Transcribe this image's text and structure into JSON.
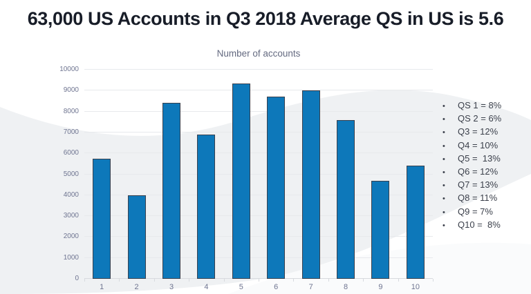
{
  "slide": {
    "title": "63,000 US Accounts in Q3 2018 Average QS in US is 5.6"
  },
  "chart_data": {
    "type": "bar",
    "title": "Number of accounts",
    "categories": [
      "1",
      "2",
      "3",
      "4",
      "5",
      "6",
      "7",
      "8",
      "9",
      "10"
    ],
    "values": [
      5750,
      4000,
      8400,
      6900,
      9350,
      8700,
      9000,
      7600,
      4700,
      5400
    ],
    "xlabel": "",
    "ylabel": "",
    "ylim": [
      0,
      10000
    ],
    "yticks": [
      0,
      1000,
      2000,
      3000,
      4000,
      5000,
      6000,
      7000,
      8000,
      9000,
      10000
    ],
    "grid": true,
    "legend_position": "right"
  },
  "legend": {
    "items": [
      "QS 1 = 8%",
      "QS 2 = 6%",
      "Q3 = 12%",
      "Q4 = 10%",
      "Q5 =  13%",
      "Q6 = 12%",
      "Q7 = 13%",
      "Q8 = 11%",
      "Q9 = 7%",
      "Q10 =  8%"
    ]
  },
  "colors": {
    "background": "#ffffff",
    "swoosh_gray": "#eff1f3",
    "swoosh_light": "#fafbfc",
    "title_text": "#181d28",
    "chart_title_text": "#646a80",
    "axis_text": "#6e7490",
    "legend_text": "#3a3f4a",
    "bar_fill": "#0d78ba",
    "bar_border": "#39404d",
    "gridline": "#e7e9ec",
    "axis_line": "#d7dade"
  }
}
